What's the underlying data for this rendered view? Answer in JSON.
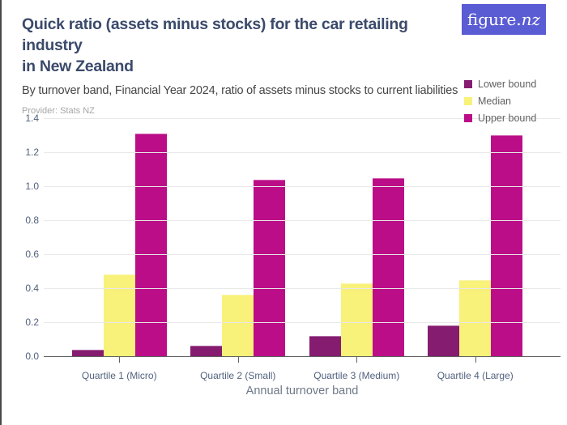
{
  "page": {
    "title_line1": "Quick ratio (assets minus stocks) for the car retailing industry",
    "title_line2": "in New Zealand",
    "subtitle": "By turnover band, Financial Year 2024, ratio of assets minus stocks to current liabilities",
    "provider": "Provider: Stats NZ",
    "logo": {
      "text_regular": "figure.",
      "text_italic": "nz"
    }
  },
  "chart_data": {
    "type": "bar",
    "title": "Quick ratio (assets minus stocks) for the car retailing industry in New Zealand",
    "subtitle": "By turnover band, Financial Year 2024, ratio of assets minus stocks to current liabilities",
    "categories": [
      "Quartile 1 (Micro)",
      "Quartile 2 (Small)",
      "Quartile 3 (Medium)",
      "Quartile 4 (Large)"
    ],
    "series": [
      {
        "name": "Lower bound",
        "color": "#851c70",
        "values": [
          0.04,
          0.06,
          0.12,
          0.18
        ]
      },
      {
        "name": "Median",
        "color": "#f8f17a",
        "values": [
          0.48,
          0.36,
          0.43,
          0.45
        ]
      },
      {
        "name": "Upper bound",
        "color": "#bb0d87",
        "values": [
          1.31,
          1.04,
          1.05,
          1.3
        ]
      }
    ],
    "xlabel": "Annual turnover band",
    "ylabel": "",
    "ylim": [
      0,
      1.4
    ],
    "yticks": [
      0,
      0.2,
      0.4,
      0.6,
      0.8,
      1.0,
      1.2,
      1.4
    ],
    "grid": true,
    "legend_position": "top-right",
    "colors": {
      "axis_label": "#51617e",
      "gridline": "#e8e8e8",
      "axis_line": "#616161",
      "logo_bg": "#5a5cd4",
      "title": "#3b4a6b"
    }
  }
}
